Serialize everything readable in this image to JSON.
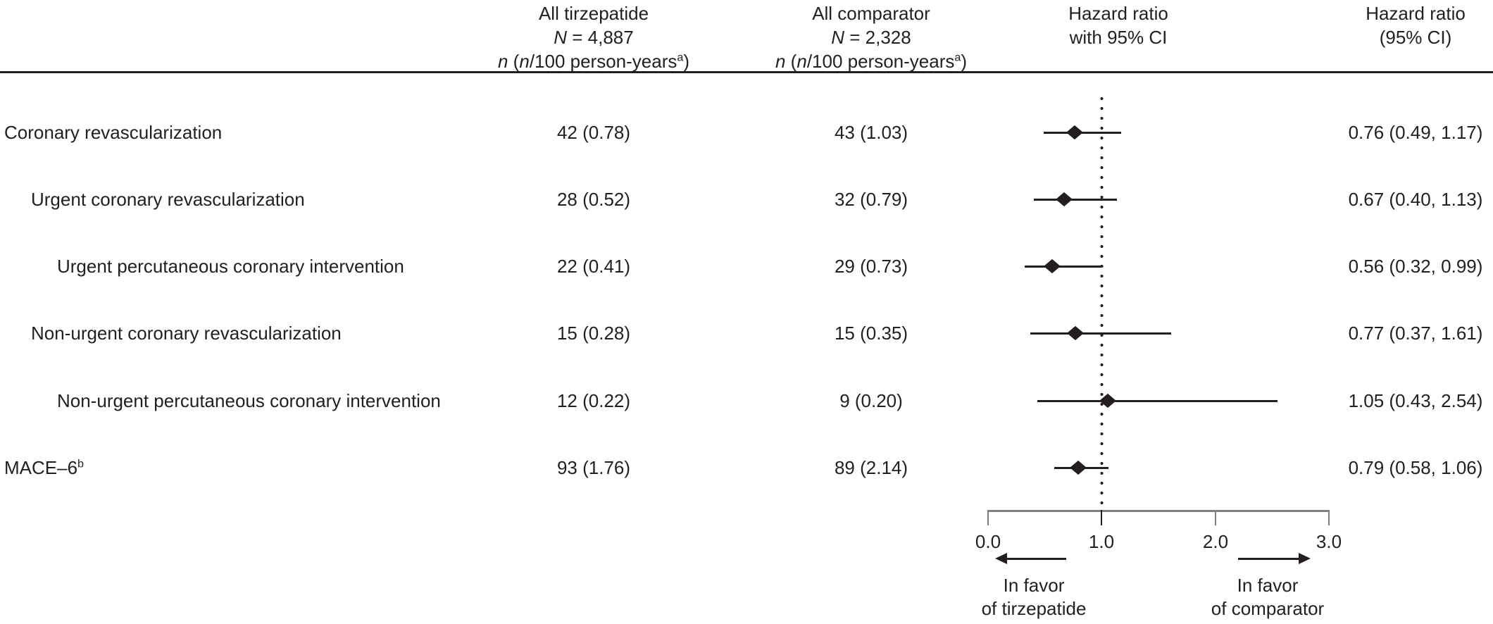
{
  "chart_data": {
    "type": "forest",
    "columns": {
      "tirzepatide": {
        "line1": "All tirzepatide",
        "line2_html": "<i>N</i> = 4,887",
        "line3_html": "<i>n</i> (<i>n</i>/100 person-years<sup>a</sup>)"
      },
      "comparator": {
        "line1": "All comparator",
        "line2_html": "<i>N</i> = 2,328",
        "line3_html": "<i>n</i> (<i>n</i>/100 person-years<sup>a</sup>)"
      },
      "plot_header": {
        "line1": "Hazard ratio",
        "line2": "with 95% CI"
      },
      "hr_header": {
        "line1": "Hazard ratio",
        "line2": "(95% CI)"
      }
    },
    "rows": [
      {
        "label": "Coronary revascularization",
        "indent": 0,
        "tirzepatide": "42 (0.78)",
        "comparator": "43 (1.03)",
        "hr_ci_label": "0.76 (0.49, 1.17)",
        "hr": 0.76,
        "ci": [
          0.49,
          1.17
        ]
      },
      {
        "label": "Urgent coronary revascularization",
        "indent": 1,
        "tirzepatide": "28 (0.52)",
        "comparator": "32 (0.79)",
        "hr_ci_label": "0.67 (0.40, 1.13)",
        "hr": 0.67,
        "ci": [
          0.4,
          1.13
        ]
      },
      {
        "label": "Urgent percutaneous coronary intervention",
        "indent": 2,
        "tirzepatide": "22 (0.41)",
        "comparator": "29 (0.73)",
        "hr_ci_label": "0.56 (0.32, 0.99)",
        "hr": 0.56,
        "ci": [
          0.32,
          0.99
        ]
      },
      {
        "label": "Non-urgent coronary revascularization",
        "indent": 1,
        "tirzepatide": "15 (0.28)",
        "comparator": "15 (0.35)",
        "hr_ci_label": "0.77 (0.37, 1.61)",
        "hr": 0.77,
        "ci": [
          0.37,
          1.61
        ]
      },
      {
        "label": "Non-urgent percutaneous coronary intervention",
        "indent": 2,
        "tirzepatide": "12 (0.22)",
        "comparator": "9 (0.20)",
        "hr_ci_label": "1.05 (0.43, 2.54)",
        "hr": 1.05,
        "ci": [
          0.43,
          2.54
        ]
      },
      {
        "label": "MACE–6<sup>b</sup>",
        "indent": 0,
        "tirzepatide": "93 (1.76)",
        "comparator": "89 (2.14)",
        "hr_ci_label": "0.79 (0.58, 1.06)",
        "hr": 0.79,
        "ci": [
          0.58,
          1.06
        ]
      }
    ],
    "xaxis": {
      "range": [
        0.0,
        3.0
      ],
      "ticks": [
        0.0,
        1.0,
        2.0,
        3.0
      ],
      "tick_labels": [
        "0.0",
        "1.0",
        "2.0",
        "3.0"
      ],
      "reference_line": 1.0
    },
    "annotations": {
      "left_arrow": {
        "line1": "In favor",
        "line2": "of tirzepatide"
      },
      "right_arrow": {
        "line1": "In favor",
        "line2": "of comparator"
      }
    },
    "colors": {
      "text": "#231f20",
      "axis": "#7f7f7f",
      "marker": "#231f20"
    },
    "legend_position": "none",
    "grid": false
  }
}
